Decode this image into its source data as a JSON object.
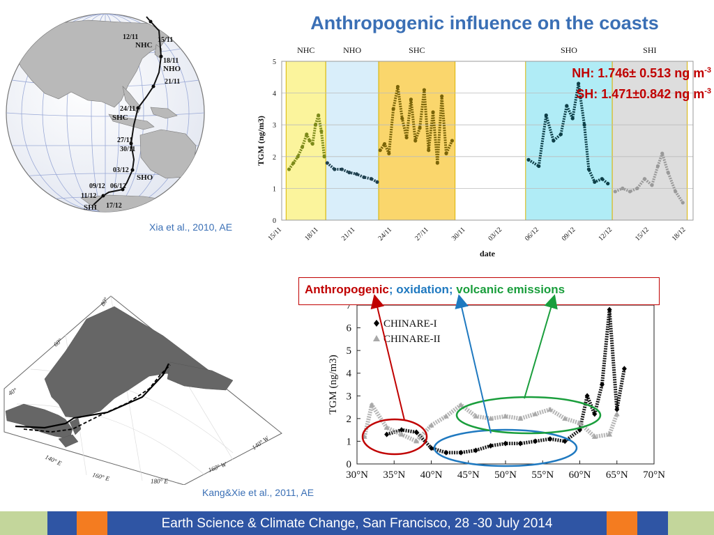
{
  "slide": {
    "title": "Anthropogenic influence on the coasts",
    "footer": "Earth Science & Climate Change, San Francisco, 28 -30 July 2014",
    "colors": {
      "title": "#3a6fb5",
      "red": "#c00000",
      "blue": "#1f79c0",
      "green": "#1a9e3c"
    }
  },
  "globe_map": {
    "citation": "Xia et al., 2010, AE",
    "labels": [
      "12/11",
      "15/11",
      "NHC",
      "18/11",
      "NHO",
      "21/11",
      "24/11",
      "SHC",
      "27/11",
      "30/11",
      "03/12",
      "SHO",
      "09/12",
      "06/12",
      "11/12",
      "SHI",
      "17/12"
    ]
  },
  "concentrations": {
    "nh_prefix": "NH: 1.746± 0.513 ng m",
    "sh_prefix": "SH: 1.471±0.842 ng m",
    "exponent": "-3"
  },
  "polar_map": {
    "citation": "Kang&Xie et al., 2011, AE",
    "labels": [
      "80°",
      "60°",
      "40°",
      "140° E",
      "160° E",
      "180° E",
      "160° W",
      "140° W"
    ]
  },
  "source_box": {
    "anthropogenic": "Anthropogenic",
    "sep1": "; ",
    "oxidation": "oxidation",
    "sep2": "; ",
    "volcanic": "volcanic emissions"
  },
  "chart_data": [
    {
      "type": "scatter",
      "xlabel": "date",
      "ylabel": "TGM (ng/m3)",
      "ylim": [
        0,
        5
      ],
      "x_tick_labels": [
        "15/11",
        "18/11",
        "21/11",
        "24/11",
        "27/11",
        "30/11",
        "03/12",
        "06/12",
        "09/12",
        "12/12",
        "15/12",
        "18/12"
      ],
      "y_ticks": [
        0,
        1,
        2,
        3,
        4,
        5
      ],
      "grid": "horizontal",
      "regions": [
        {
          "name": "NHC",
          "x": [
            15.3,
            18.0
          ],
          "color": "#fbf49c"
        },
        {
          "name": "NHO",
          "x": [
            18.0,
            21.6
          ],
          "color": "#d9eefa"
        },
        {
          "name": "SHC",
          "x": [
            21.6,
            26.8
          ],
          "color": "#fad66c"
        },
        {
          "name": "SHO",
          "x": [
            31.6,
            37.5
          ],
          "color": "#b0ecf6"
        },
        {
          "name": "SHI",
          "x": [
            37.5,
            42.6
          ],
          "color": "#dddddd"
        }
      ],
      "series": [
        {
          "region": "NHC",
          "color": "#7c8a1a",
          "points": [
            [
              15.5,
              1.6
            ],
            [
              15.8,
              1.8
            ],
            [
              16.1,
              2.0
            ],
            [
              16.4,
              2.3
            ],
            [
              16.7,
              2.7
            ],
            [
              16.9,
              2.5
            ],
            [
              17.1,
              2.4
            ],
            [
              17.3,
              3.0
            ],
            [
              17.5,
              3.3
            ],
            [
              17.7,
              2.8
            ],
            [
              17.9,
              2.0
            ]
          ]
        },
        {
          "region": "NHO",
          "color": "#1f4150",
          "points": [
            [
              18.1,
              1.8
            ],
            [
              18.6,
              1.6
            ],
            [
              19.1,
              1.6
            ],
            [
              19.6,
              1.5
            ],
            [
              20.1,
              1.45
            ],
            [
              20.6,
              1.35
            ],
            [
              21.1,
              1.3
            ],
            [
              21.5,
              1.2
            ]
          ]
        },
        {
          "region": "SHC",
          "color": "#7a6408",
          "points": [
            [
              21.7,
              2.2
            ],
            [
              22.0,
              2.4
            ],
            [
              22.3,
              2.1
            ],
            [
              22.6,
              3.5
            ],
            [
              22.9,
              4.2
            ],
            [
              23.2,
              3.2
            ],
            [
              23.5,
              2.6
            ],
            [
              23.8,
              3.8
            ],
            [
              24.1,
              2.5
            ],
            [
              24.4,
              2.9
            ],
            [
              24.7,
              4.1
            ],
            [
              25.0,
              2.2
            ],
            [
              25.3,
              3.4
            ],
            [
              25.6,
              1.8
            ],
            [
              25.9,
              3.9
            ],
            [
              26.2,
              2.1
            ],
            [
              26.6,
              2.5
            ]
          ]
        },
        {
          "region": "SHO",
          "color": "#0d3f48",
          "points": [
            [
              31.8,
              1.9
            ],
            [
              32.5,
              1.7
            ],
            [
              33.0,
              3.3
            ],
            [
              33.5,
              2.5
            ],
            [
              34.0,
              2.7
            ],
            [
              34.4,
              3.6
            ],
            [
              34.8,
              3.2
            ],
            [
              35.2,
              4.3
            ],
            [
              35.6,
              3.0
            ],
            [
              35.9,
              1.6
            ],
            [
              36.3,
              1.2
            ],
            [
              36.8,
              1.3
            ],
            [
              37.2,
              1.15
            ]
          ]
        },
        {
          "region": "SHI",
          "color": "#999999",
          "points": [
            [
              37.7,
              0.9
            ],
            [
              38.2,
              1.0
            ],
            [
              38.7,
              0.9
            ],
            [
              39.2,
              1.0
            ],
            [
              39.7,
              1.3
            ],
            [
              40.2,
              1.1
            ],
            [
              40.6,
              1.7
            ],
            [
              40.9,
              2.1
            ],
            [
              41.3,
              1.5
            ],
            [
              41.8,
              0.9
            ],
            [
              42.3,
              0.55
            ]
          ]
        }
      ]
    },
    {
      "type": "scatter",
      "xlabel": "",
      "ylabel": "TGM (ng/m3)",
      "ylim": [
        0,
        7
      ],
      "xlim": [
        30,
        70
      ],
      "x_tick_labels": [
        "30°N",
        "35°N",
        "40°N",
        "45°N",
        "50°N",
        "55°N",
        "60°N",
        "65°N",
        "70°N"
      ],
      "y_ticks": [
        0,
        1,
        2,
        3,
        4,
        5,
        6,
        7
      ],
      "legend": "top-left",
      "series": [
        {
          "name": "CHINARE-I",
          "marker": "diamond",
          "color": "#000000",
          "points": [
            [
              34,
              1.3
            ],
            [
              36,
              1.5
            ],
            [
              38,
              1.4
            ],
            [
              40,
              0.7
            ],
            [
              42,
              0.5
            ],
            [
              44,
              0.5
            ],
            [
              46,
              0.6
            ],
            [
              48,
              0.8
            ],
            [
              50,
              0.9
            ],
            [
              52,
              0.9
            ],
            [
              54,
              1.0
            ],
            [
              56,
              1.1
            ],
            [
              58,
              1.0
            ],
            [
              60,
              1.5
            ],
            [
              61,
              3.0
            ],
            [
              62,
              2.2
            ],
            [
              63,
              3.5
            ],
            [
              64,
              6.8
            ],
            [
              65,
              2.4
            ],
            [
              66,
              4.2
            ]
          ]
        },
        {
          "name": "CHINARE-II",
          "marker": "triangle",
          "color": "#a8a8a8",
          "points": [
            [
              31,
              1.2
            ],
            [
              32,
              2.6
            ],
            [
              34,
              1.6
            ],
            [
              36,
              1.3
            ],
            [
              38,
              1.0
            ],
            [
              40,
              1.7
            ],
            [
              42,
              2.1
            ],
            [
              44,
              2.6
            ],
            [
              46,
              2.1
            ],
            [
              48,
              2.0
            ],
            [
              50,
              2.1
            ],
            [
              52,
              2.0
            ],
            [
              54,
              2.2
            ],
            [
              56,
              2.4
            ],
            [
              58,
              2.0
            ],
            [
              60,
              1.8
            ],
            [
              62,
              1.2
            ],
            [
              64,
              1.3
            ],
            [
              65,
              2.2
            ]
          ]
        }
      ]
    }
  ]
}
